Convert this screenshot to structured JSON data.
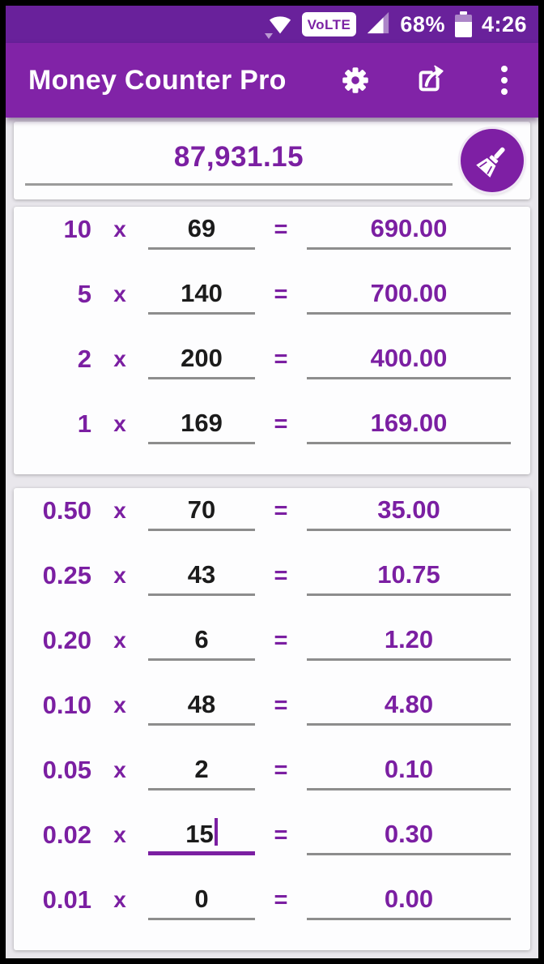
{
  "status_bar": {
    "volte_label": "VoLTE",
    "battery_percent": "68%",
    "time": "4:26"
  },
  "app_bar": {
    "title": "Money Counter Pro"
  },
  "total": {
    "value": "87,931.15"
  },
  "symbols": {
    "multiply": "x",
    "equals": "="
  },
  "cards": [
    {
      "rows": [
        {
          "denom": "10",
          "count": "69",
          "result": "690.00"
        },
        {
          "denom": "5",
          "count": "140",
          "result": "700.00"
        },
        {
          "denom": "2",
          "count": "200",
          "result": "400.00"
        },
        {
          "denom": "1",
          "count": "169",
          "result": "169.00"
        }
      ]
    },
    {
      "rows": [
        {
          "denom": "0.50",
          "count": "70",
          "result": "35.00"
        },
        {
          "denom": "0.25",
          "count": "43",
          "result": "10.75"
        },
        {
          "denom": "0.20",
          "count": "6",
          "result": "1.20"
        },
        {
          "denom": "0.10",
          "count": "48",
          "result": "4.80"
        },
        {
          "denom": "0.05",
          "count": "2",
          "result": "0.10"
        },
        {
          "denom": "0.02",
          "count": "15",
          "result": "0.30",
          "focused": true
        },
        {
          "denom": "0.01",
          "count": "0",
          "result": "0.00"
        }
      ]
    }
  ],
  "colors": {
    "status_bar": "#69219b",
    "app_bar": "#8123a7",
    "accent_text": "#7b1fa2",
    "count_text": "#1b1b1b",
    "background": "#e9e7ec",
    "card": "#fdfdfe",
    "underline": "#8d8d8d"
  }
}
